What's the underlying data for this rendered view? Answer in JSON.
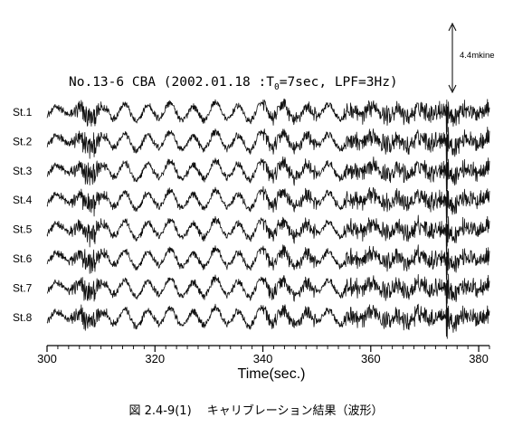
{
  "chart_data": {
    "type": "line",
    "title_prefix": "No.13-6 CBA (2002.01.18 :T",
    "title_sub": "0",
    "title_suffix": "=7sec, LPF=3Hz)",
    "xlabel": "Time(sec.)",
    "xlim": [
      300,
      382
    ],
    "xticks": [
      300,
      320,
      340,
      360,
      380
    ],
    "scale_label": "4.4mkine",
    "series": [
      {
        "name": "St.1"
      },
      {
        "name": "St.2"
      },
      {
        "name": "St.3"
      },
      {
        "name": "St.4"
      },
      {
        "name": "St.5"
      },
      {
        "name": "St.6"
      },
      {
        "name": "St.7"
      },
      {
        "name": "St.8"
      }
    ],
    "waveform": {
      "t0_sec": 7,
      "lpf_hz": 3,
      "dominant_period_sec": 4.2
    },
    "grid": false
  },
  "caption": "図 2.4-9(1)　 キャリブレーション結果（波形）"
}
